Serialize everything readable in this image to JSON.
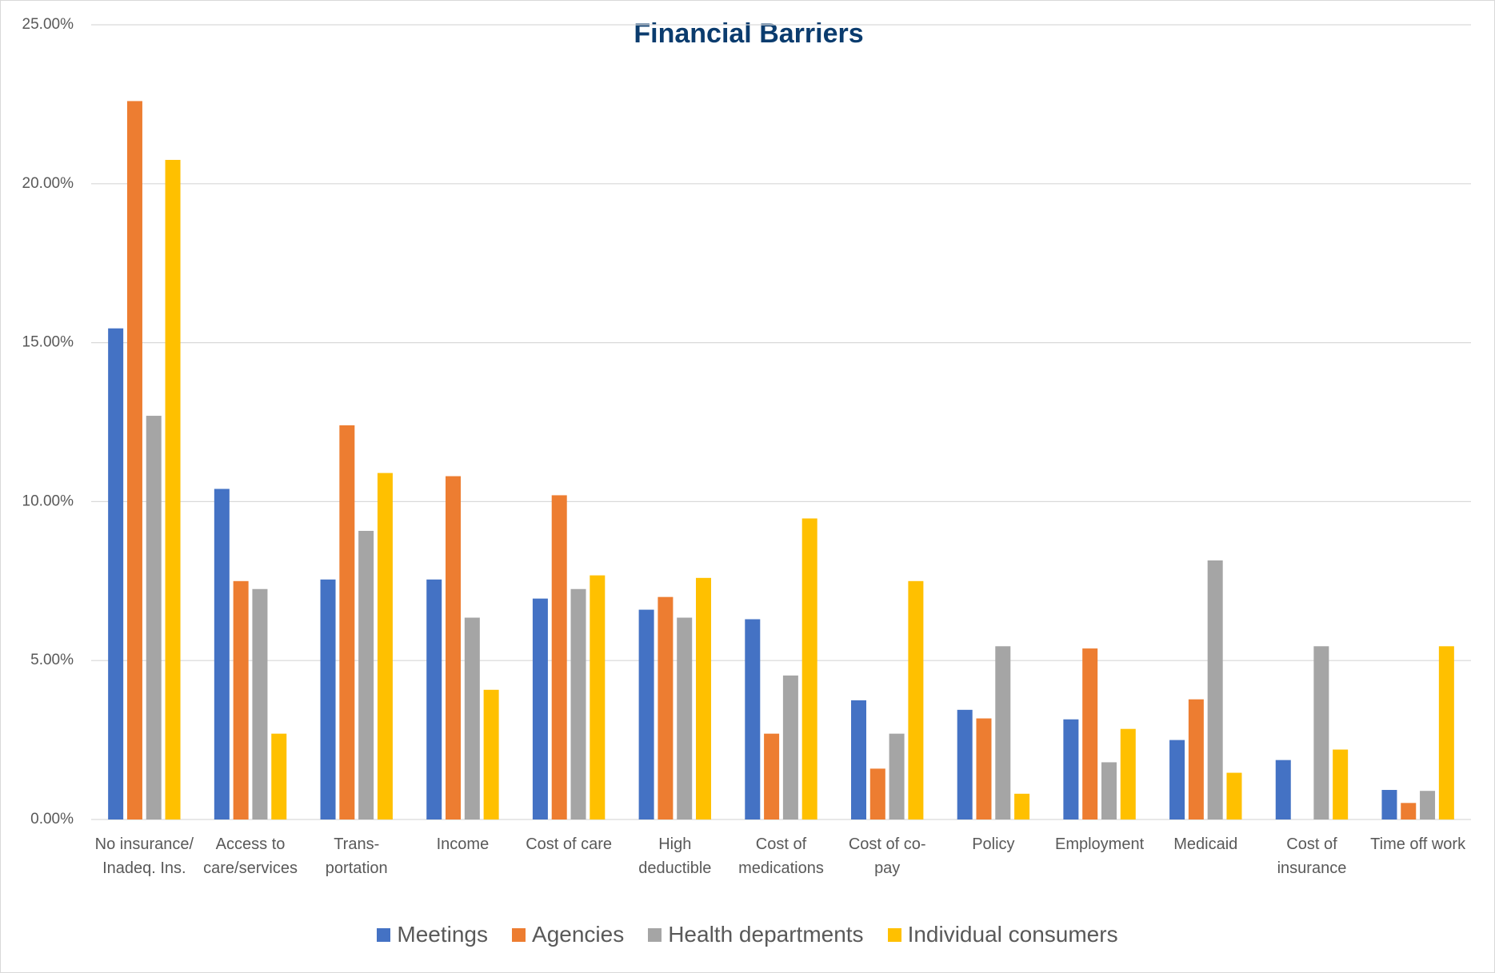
{
  "chart_data": {
    "type": "bar",
    "title": "Financial Barriers",
    "categories": [
      "No insurance/ Inadeq. Ins.",
      "Access to care/services",
      "Trans- portation",
      "Income",
      "Cost of care",
      "High deductible",
      "Cost of medications",
      "Cost of co- pay",
      "Policy",
      "Employment",
      "Medicaid",
      "Cost of insurance",
      "Time off work"
    ],
    "series": [
      {
        "name": "Meetings",
        "color": "#4472c4",
        "values": [
          15.45,
          10.4,
          7.55,
          7.55,
          6.95,
          6.6,
          6.3,
          3.75,
          3.45,
          3.15,
          2.5,
          1.87,
          0.93
        ]
      },
      {
        "name": "Agencies",
        "color": "#ed7d31",
        "values": [
          22.6,
          7.5,
          12.4,
          10.8,
          10.2,
          7.0,
          2.7,
          1.6,
          3.18,
          5.38,
          3.78,
          0,
          0.52
        ]
      },
      {
        "name": "Health departments",
        "color": "#a5a5a5",
        "values": [
          12.7,
          7.25,
          9.08,
          6.35,
          7.25,
          6.35,
          4.53,
          2.7,
          5.45,
          1.8,
          8.15,
          5.45,
          0.9
        ]
      },
      {
        "name": "Individual consumers",
        "color": "#ffc000",
        "values": [
          20.75,
          2.7,
          10.9,
          4.08,
          7.68,
          7.6,
          9.47,
          7.5,
          0.81,
          2.85,
          1.47,
          2.2,
          5.45
        ]
      }
    ],
    "ylim": [
      0,
      25
    ],
    "yticks": [
      {
        "value": 0,
        "label": "0.00%"
      },
      {
        "value": 5,
        "label": "5.00%"
      },
      {
        "value": 10,
        "label": "10.00%"
      },
      {
        "value": 15,
        "label": "15.00%"
      },
      {
        "value": 20,
        "label": "20.00%"
      },
      {
        "value": 25,
        "label": "25.00%"
      }
    ],
    "grid": true,
    "legend": "bottom"
  }
}
